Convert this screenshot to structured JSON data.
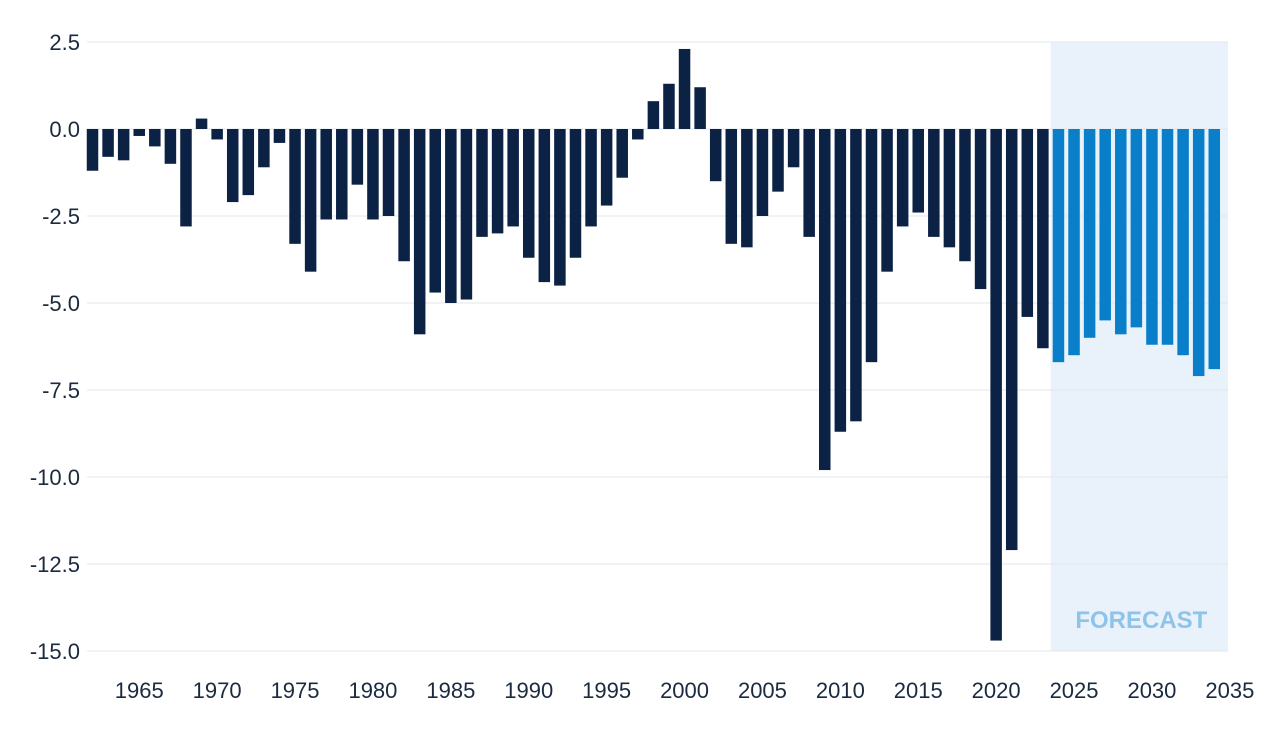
{
  "chart_data": {
    "type": "bar",
    "title": "",
    "xlabel": "",
    "ylabel": "",
    "ylim": [
      -15,
      2.5
    ],
    "y_ticks": [
      "2.5",
      "0.0",
      "-2.5",
      "-5.0",
      "-7.5",
      "-10.0",
      "-12.5",
      "-15.0"
    ],
    "x_ticks": [
      "1965",
      "1970",
      "1975",
      "1980",
      "1985",
      "1990",
      "1995",
      "2000",
      "2005",
      "2010",
      "2015",
      "2020",
      "2025",
      "2030",
      "2035"
    ],
    "grid": "horizontal",
    "colors": {
      "historical": "#0b2244",
      "forecast": "#0a7fc9",
      "forecast_region": "#e9f2fa",
      "forecast_text": "#8ec4ea",
      "grid": "#e3e6ea"
    },
    "forecast_label": "FORECAST",
    "forecast_start_year": 2024,
    "years": [
      1962,
      1963,
      1964,
      1965,
      1966,
      1967,
      1968,
      1969,
      1970,
      1971,
      1972,
      1973,
      1974,
      1975,
      1976,
      1977,
      1978,
      1979,
      1980,
      1981,
      1982,
      1983,
      1984,
      1985,
      1986,
      1987,
      1988,
      1989,
      1990,
      1991,
      1992,
      1993,
      1994,
      1995,
      1996,
      1997,
      1998,
      1999,
      2000,
      2001,
      2002,
      2003,
      2004,
      2005,
      2006,
      2007,
      2008,
      2009,
      2010,
      2011,
      2012,
      2013,
      2014,
      2015,
      2016,
      2017,
      2018,
      2019,
      2020,
      2021,
      2022,
      2023,
      2024,
      2025,
      2026,
      2027,
      2028,
      2029,
      2030,
      2031,
      2032,
      2033,
      2034
    ],
    "values": [
      -1.2,
      -0.8,
      -0.9,
      -0.2,
      -0.5,
      -1.0,
      -2.8,
      0.3,
      -0.3,
      -2.1,
      -1.9,
      -1.1,
      -0.4,
      -3.3,
      -4.1,
      -2.6,
      -2.6,
      -1.6,
      -2.6,
      -2.5,
      -3.8,
      -5.9,
      -4.7,
      -5.0,
      -4.9,
      -3.1,
      -3.0,
      -2.8,
      -3.7,
      -4.4,
      -4.5,
      -3.7,
      -2.8,
      -2.2,
      -1.4,
      -0.3,
      0.8,
      1.3,
      2.3,
      1.2,
      -1.5,
      -3.3,
      -3.4,
      -2.5,
      -1.8,
      -1.1,
      -3.1,
      -9.8,
      -8.7,
      -8.4,
      -6.7,
      -4.1,
      -2.8,
      -2.4,
      -3.1,
      -3.4,
      -3.8,
      -4.6,
      -14.7,
      -12.1,
      -5.4,
      -6.3,
      -6.7,
      -6.5,
      -6.0,
      -5.5,
      -5.9,
      -5.7,
      -6.2,
      -6.2,
      -6.5,
      -7.1,
      -6.9
    ]
  }
}
